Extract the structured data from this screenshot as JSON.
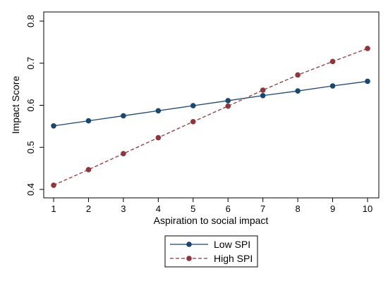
{
  "chart_data": {
    "type": "line",
    "xlabel": "Aspiration to social impact",
    "ylabel": "Impact Score",
    "x": [
      1,
      2,
      3,
      4,
      5,
      6,
      7,
      8,
      9,
      10
    ],
    "xlim": [
      1,
      10
    ],
    "ylim": [
      0.4,
      0.8
    ],
    "x_ticks": [
      "1",
      "2",
      "3",
      "4",
      "5",
      "6",
      "7",
      "8",
      "9",
      "10"
    ],
    "y_ticks": [
      "0.4",
      "0.5",
      "0.6",
      "0.7",
      "0.8"
    ],
    "grid": false,
    "legend_position": "bottom-center",
    "series": [
      {
        "name": "Low SPI",
        "color": "#1a476f",
        "line_style": "solid",
        "values": [
          0.551,
          0.563,
          0.575,
          0.587,
          0.599,
          0.611,
          0.623,
          0.634,
          0.646,
          0.657
        ]
      },
      {
        "name": "High SPI",
        "color": "#90353b",
        "line_style": "dashed",
        "values": [
          0.41,
          0.447,
          0.485,
          0.523,
          0.561,
          0.598,
          0.636,
          0.672,
          0.704,
          0.735
        ]
      }
    ]
  }
}
